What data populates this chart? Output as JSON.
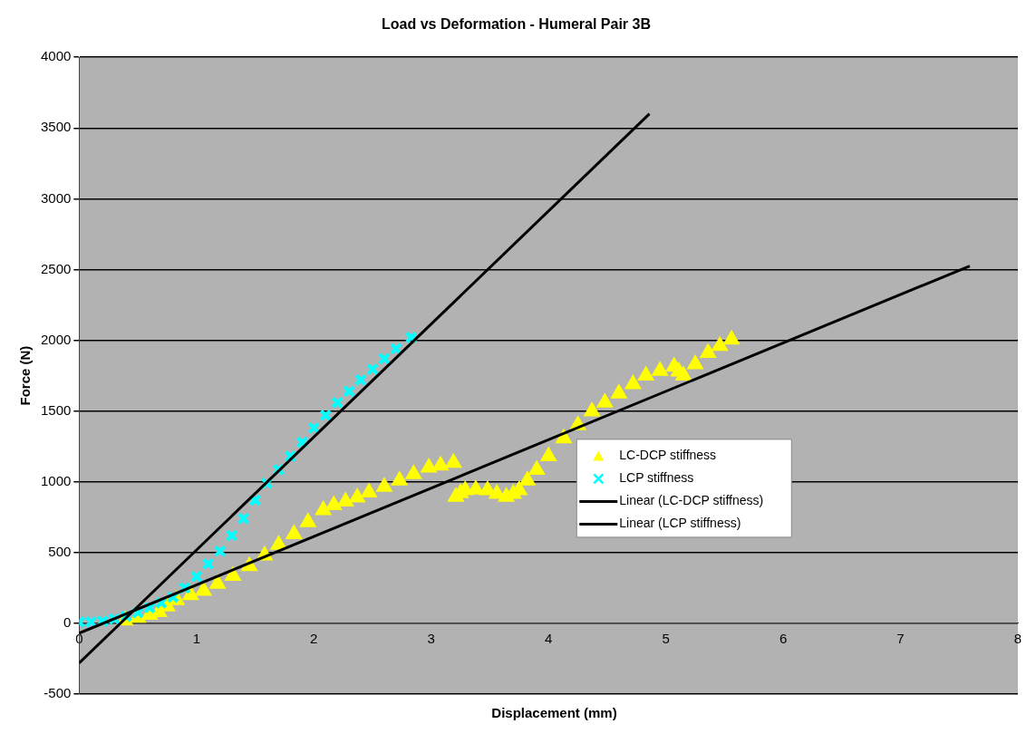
{
  "chart_data": {
    "type": "scatter",
    "title": "Load vs Deformation - Humeral Pair 3B",
    "xlabel": "Displacement (mm)",
    "ylabel": "Force (N)",
    "xlim": [
      0,
      8
    ],
    "xticks": [
      0,
      1,
      2,
      3,
      4,
      5,
      6,
      7,
      8
    ],
    "ylim": [
      -500,
      4000
    ],
    "yticks": [
      -500,
      0,
      500,
      1000,
      1500,
      2000,
      2500,
      3000,
      3500,
      4000
    ],
    "grid": "y",
    "legend": "center right",
    "series": [
      {
        "name": "LC-DCP stiffness",
        "marker": "triangle",
        "color": "#ffff00",
        "x": [
          0.39,
          0.5,
          0.6,
          0.68,
          0.75,
          0.83,
          0.95,
          1.06,
          1.18,
          1.31,
          1.45,
          1.58,
          1.7,
          1.83,
          1.95,
          2.08,
          2.17,
          2.27,
          2.37,
          2.47,
          2.6,
          2.73,
          2.85,
          2.98,
          3.08,
          3.19,
          3.21,
          3.25,
          3.29,
          3.38,
          3.48,
          3.56,
          3.64,
          3.7,
          3.75,
          3.82,
          3.9,
          4.0,
          4.13,
          4.25,
          4.37,
          4.48,
          4.6,
          4.72,
          4.83,
          4.95,
          5.07,
          5.11,
          5.15,
          5.25,
          5.36,
          5.46,
          5.56
        ],
        "values": [
          20,
          40,
          60,
          80,
          120,
          165,
          200,
          230,
          280,
          335,
          405,
          480,
          555,
          630,
          715,
          800,
          835,
          860,
          890,
          925,
          965,
          1010,
          1055,
          1100,
          1115,
          1135,
          895,
          920,
          940,
          945,
          940,
          915,
          895,
          915,
          940,
          1010,
          1085,
          1180,
          1307,
          1400,
          1497,
          1560,
          1624,
          1690,
          1751,
          1785,
          1815,
          1780,
          1751,
          1830,
          1910,
          1960,
          2005
        ]
      },
      {
        "name": "LCP stiffness",
        "marker": "cross",
        "color": "#00ffff",
        "x": [
          0,
          0.1,
          0.2,
          0.3,
          0.4,
          0.5,
          0.6,
          0.7,
          0.8,
          0.9,
          1.0,
          1.1,
          1.2,
          1.3,
          1.4,
          1.5,
          1.6,
          1.7,
          1.8,
          1.9,
          2.0,
          2.1,
          2.2,
          2.3,
          2.4,
          2.5,
          2.6,
          2.7,
          2.83
        ],
        "values": [
          10,
          10,
          15,
          30,
          50,
          75,
          110,
          145,
          185,
          250,
          330,
          420,
          510,
          620,
          740,
          870,
          990,
          1085,
          1180,
          1280,
          1380,
          1470,
          1560,
          1640,
          1720,
          1795,
          1870,
          1940,
          2020
        ]
      },
      {
        "name": "Linear (LC-DCP stiffness)",
        "type": "line",
        "color": "#000000",
        "x": [
          0,
          7.59
        ],
        "values": [
          -70,
          2525
        ]
      },
      {
        "name": "Linear (LCP stiffness)",
        "type": "line",
        "color": "#000000",
        "x": [
          0,
          4.86
        ],
        "values": [
          -280,
          3600
        ]
      }
    ]
  }
}
